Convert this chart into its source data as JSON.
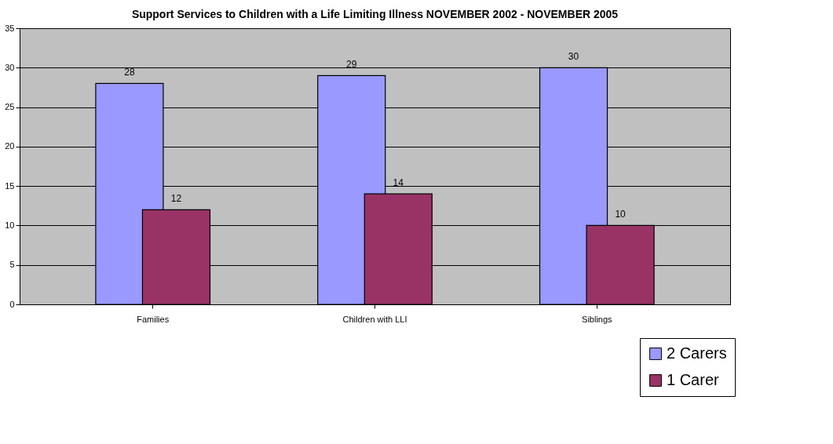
{
  "chart_data": {
    "type": "bar",
    "title": "Support Services to Children with a Life Limiting Illness  NOVEMBER 2002 - NOVEMBER 2005",
    "categories": [
      "Families",
      "Children with LLI",
      "Siblings"
    ],
    "series": [
      {
        "name": "2 Carers",
        "color": "#9999ff",
        "values": [
          28,
          29,
          30
        ]
      },
      {
        "name": "1 Carer",
        "color": "#993366",
        "values": [
          12,
          14,
          10
        ]
      }
    ],
    "ylim": [
      0,
      35
    ],
    "yticks": [
      0,
      5,
      10,
      15,
      20,
      25,
      30,
      35
    ],
    "grid": "y",
    "legend": "bottom right",
    "data_labels": true
  }
}
